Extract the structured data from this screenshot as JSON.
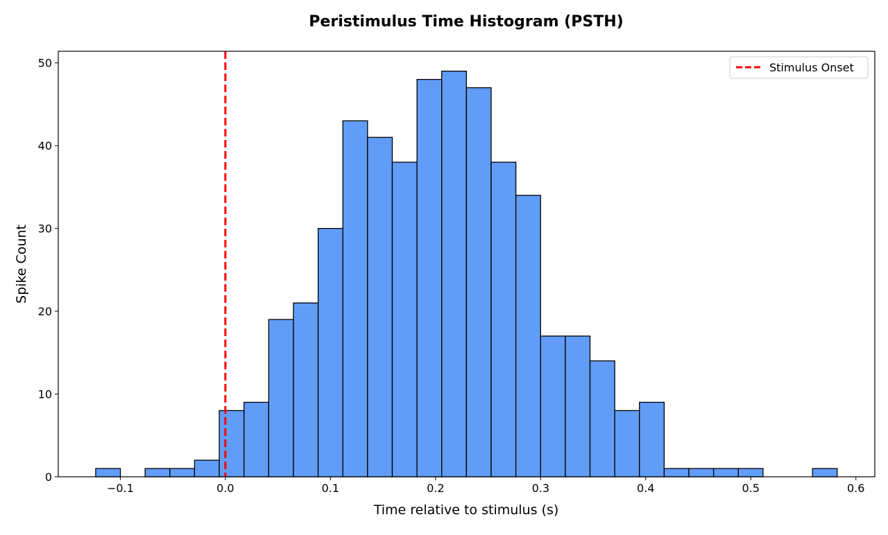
{
  "chart_data": {
    "type": "bar",
    "title": "Peristimulus Time Histogram (PSTH)",
    "xlabel": "Time relative to stimulus (s)",
    "ylabel": "Spike Count",
    "xlim": [
      -0.159,
      0.618
    ],
    "ylim": [
      0,
      51.4
    ],
    "xticks": [
      -0.1,
      0.0,
      0.1,
      0.2,
      0.3,
      0.4,
      0.5,
      0.6
    ],
    "xtick_labels": [
      "−0.1",
      "0.0",
      "0.1",
      "0.2",
      "0.3",
      "0.4",
      "0.5",
      "0.6"
    ],
    "yticks": [
      0,
      10,
      20,
      30,
      40,
      50
    ],
    "ytick_labels": [
      "0",
      "10",
      "20",
      "30",
      "40",
      "50"
    ],
    "bin_start": -0.1234,
    "bin_width": 0.02352,
    "counts": [
      1,
      0,
      1,
      1,
      2,
      8,
      9,
      19,
      21,
      30,
      43,
      41,
      38,
      48,
      49,
      47,
      38,
      34,
      17,
      17,
      14,
      8,
      9,
      1,
      1,
      1,
      1,
      0,
      0,
      1
    ],
    "bar_color": "#619cf7",
    "edge_color": "#000000",
    "grid": false,
    "vline": {
      "x": 0.0,
      "color": "#ff0000",
      "style": "dashed",
      "label": "Stimulus Onset"
    },
    "legend": {
      "placement": "top-right",
      "entries": [
        "Stimulus Onset"
      ]
    }
  }
}
